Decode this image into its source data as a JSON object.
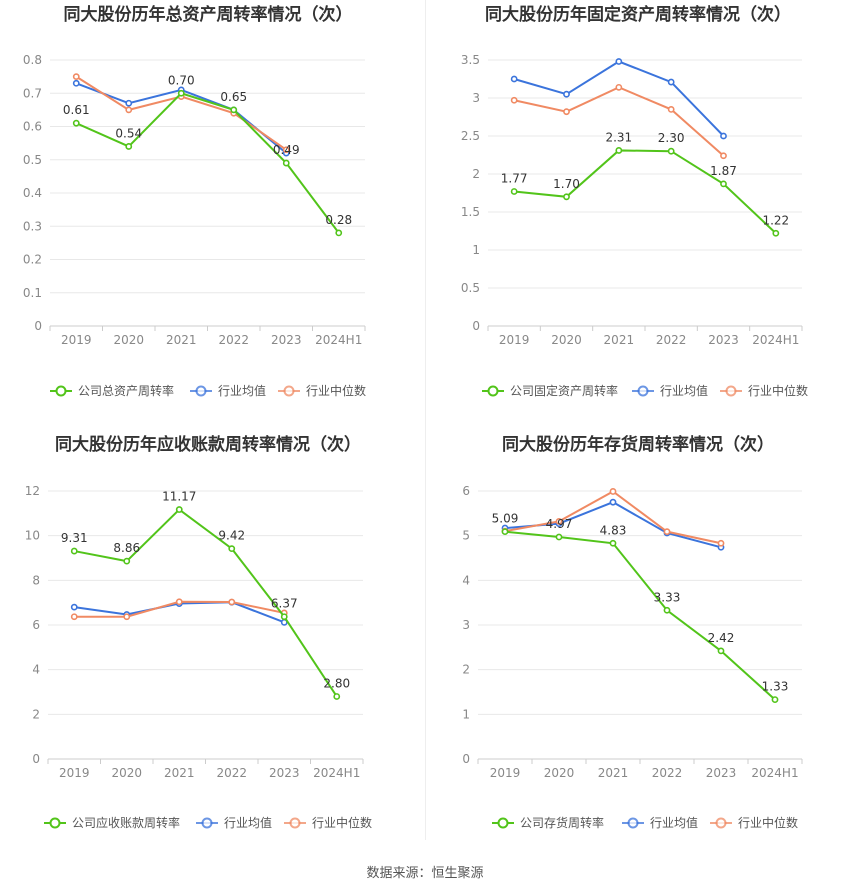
{
  "source_label": "数据来源：恒生聚源",
  "chart_data": [
    {
      "type": "line",
      "title": "同大股份历年总资产周转率情况（次）",
      "categories": [
        "2019",
        "2020",
        "2021",
        "2022",
        "2023",
        "2024H1"
      ],
      "ylim": [
        0,
        0.8
      ],
      "yticks": [
        "0",
        "0.1",
        "0.2",
        "0.3",
        "0.4",
        "0.5",
        "0.6",
        "0.7",
        "0.8"
      ],
      "grid": true,
      "legend_position": "bottom",
      "series": [
        {
          "name": "公司总资产周转率",
          "color": "#52c41a",
          "values": [
            0.61,
            0.54,
            0.7,
            0.65,
            0.49,
            0.28
          ],
          "labels": [
            "0.61",
            "0.54",
            "0.70",
            "0.65",
            "0.49",
            "0.28"
          ]
        },
        {
          "name": "行业均值",
          "color": "#3b74dc",
          "values": [
            0.73,
            0.67,
            0.71,
            0.65,
            0.52,
            null
          ]
        },
        {
          "name": "行业中位数",
          "color": "#f08a63",
          "values": [
            0.75,
            0.65,
            0.69,
            0.64,
            0.53,
            null
          ]
        }
      ]
    },
    {
      "type": "line",
      "title": "同大股份历年固定资产周转率情况（次）",
      "categories": [
        "2019",
        "2020",
        "2021",
        "2022",
        "2023",
        "2024H1"
      ],
      "ylim": [
        0,
        3.5
      ],
      "yticks": [
        "0",
        "0.5",
        "1",
        "1.5",
        "2",
        "2.5",
        "3",
        "3.5"
      ],
      "grid": true,
      "legend_position": "bottom",
      "series": [
        {
          "name": "公司固定资产周转率",
          "color": "#52c41a",
          "values": [
            1.77,
            1.7,
            2.31,
            2.3,
            1.87,
            1.22
          ],
          "labels": [
            "1.77",
            "1.70",
            "2.31",
            "2.30",
            "1.87",
            "1.22"
          ]
        },
        {
          "name": "行业均值",
          "color": "#3b74dc",
          "values": [
            3.25,
            3.05,
            3.48,
            3.21,
            2.5,
            null
          ]
        },
        {
          "name": "行业中位数",
          "color": "#f08a63",
          "values": [
            2.97,
            2.82,
            3.14,
            2.85,
            2.24,
            null
          ]
        }
      ]
    },
    {
      "type": "line",
      "title": "同大股份历年应收账款周转率情况（次）",
      "categories": [
        "2019",
        "2020",
        "2021",
        "2022",
        "2023",
        "2024H1"
      ],
      "ylim": [
        0,
        12
      ],
      "yticks": [
        "0",
        "2",
        "4",
        "6",
        "8",
        "10",
        "12"
      ],
      "grid": true,
      "legend_position": "bottom",
      "series": [
        {
          "name": "公司应收账款周转率",
          "color": "#52c41a",
          "values": [
            9.31,
            8.86,
            11.17,
            9.42,
            6.37,
            2.8
          ],
          "labels": [
            "9.31",
            "8.86",
            "11.17",
            "9.42",
            "6.37",
            "2.80"
          ]
        },
        {
          "name": "行业均值",
          "color": "#3b74dc",
          "values": [
            6.8,
            6.47,
            6.96,
            7.02,
            6.12,
            null
          ]
        },
        {
          "name": "行业中位数",
          "color": "#f08a63",
          "values": [
            6.37,
            6.37,
            7.04,
            7.03,
            6.54,
            null
          ]
        }
      ]
    },
    {
      "type": "line",
      "title": "同大股份历年存货周转率情况（次）",
      "categories": [
        "2019",
        "2020",
        "2021",
        "2022",
        "2023",
        "2024H1"
      ],
      "ylim": [
        0,
        6
      ],
      "yticks": [
        "0",
        "1",
        "2",
        "3",
        "4",
        "5",
        "6"
      ],
      "grid": true,
      "legend_position": "bottom",
      "series": [
        {
          "name": "公司存货周转率",
          "color": "#52c41a",
          "values": [
            5.09,
            4.97,
            4.83,
            3.33,
            2.42,
            1.33
          ],
          "labels": [
            "5.09",
            "4.97",
            "4.83",
            "3.33",
            "2.42",
            "1.33"
          ]
        },
        {
          "name": "行业均值",
          "color": "#3b74dc",
          "values": [
            5.17,
            5.27,
            5.75,
            5.06,
            4.74,
            null
          ]
        },
        {
          "name": "行业中位数",
          "color": "#f08a63",
          "values": [
            5.1,
            5.32,
            5.99,
            5.09,
            4.83,
            null
          ]
        }
      ]
    }
  ]
}
